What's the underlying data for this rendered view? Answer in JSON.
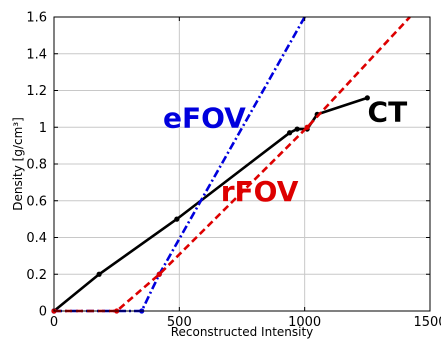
{
  "chart_data": {
    "type": "line",
    "title": "",
    "xlabel": "Reconstructed Intensity",
    "ylabel": "Density [g/cm³]",
    "xlim": [
      0,
      1500
    ],
    "ylim": [
      0,
      1.6
    ],
    "xticks": [
      0,
      500,
      1000,
      1500
    ],
    "xtick_labels": [
      "0",
      "500",
      "1000",
      "1500"
    ],
    "yticks": [
      0,
      0.2,
      0.4,
      0.6,
      0.8,
      1.0,
      1.2,
      1.4,
      1.6
    ],
    "ytick_labels": [
      "0",
      "0.2",
      "0.4",
      "0.6",
      "0.8",
      "1",
      "1.2",
      "1.4",
      "1.6"
    ],
    "grid": true,
    "series": [
      {
        "name": "CT",
        "color": "#000000",
        "style": "solid",
        "marker": "dot",
        "x": [
          0,
          180,
          490,
          940,
          970,
          1010,
          1050,
          1250
        ],
        "y": [
          0,
          0.2,
          0.5,
          0.97,
          0.99,
          0.99,
          1.07,
          1.16
        ]
      },
      {
        "name": "eFOV",
        "color": "#0000dd",
        "style": "dashdot",
        "marker": "dot",
        "x": [
          0,
          350,
          420,
          1000
        ],
        "y": [
          0,
          0,
          0.2,
          1.6
        ]
      },
      {
        "name": "rFOV",
        "color": "#dd0000",
        "style": "dashed",
        "marker": "dot",
        "x": [
          0,
          250,
          420,
          1010,
          1420
        ],
        "y": [
          0,
          0,
          0.2,
          1.0,
          1.6
        ]
      }
    ],
    "annotations": [
      {
        "text": "eFOV",
        "series": "eFOV",
        "x": 600,
        "y": 1.0
      },
      {
        "text": "rFOV",
        "series": "rFOV",
        "x": 820,
        "y": 0.6
      },
      {
        "text": "CT",
        "series": "CT",
        "x": 1330,
        "y": 1.03
      }
    ]
  }
}
